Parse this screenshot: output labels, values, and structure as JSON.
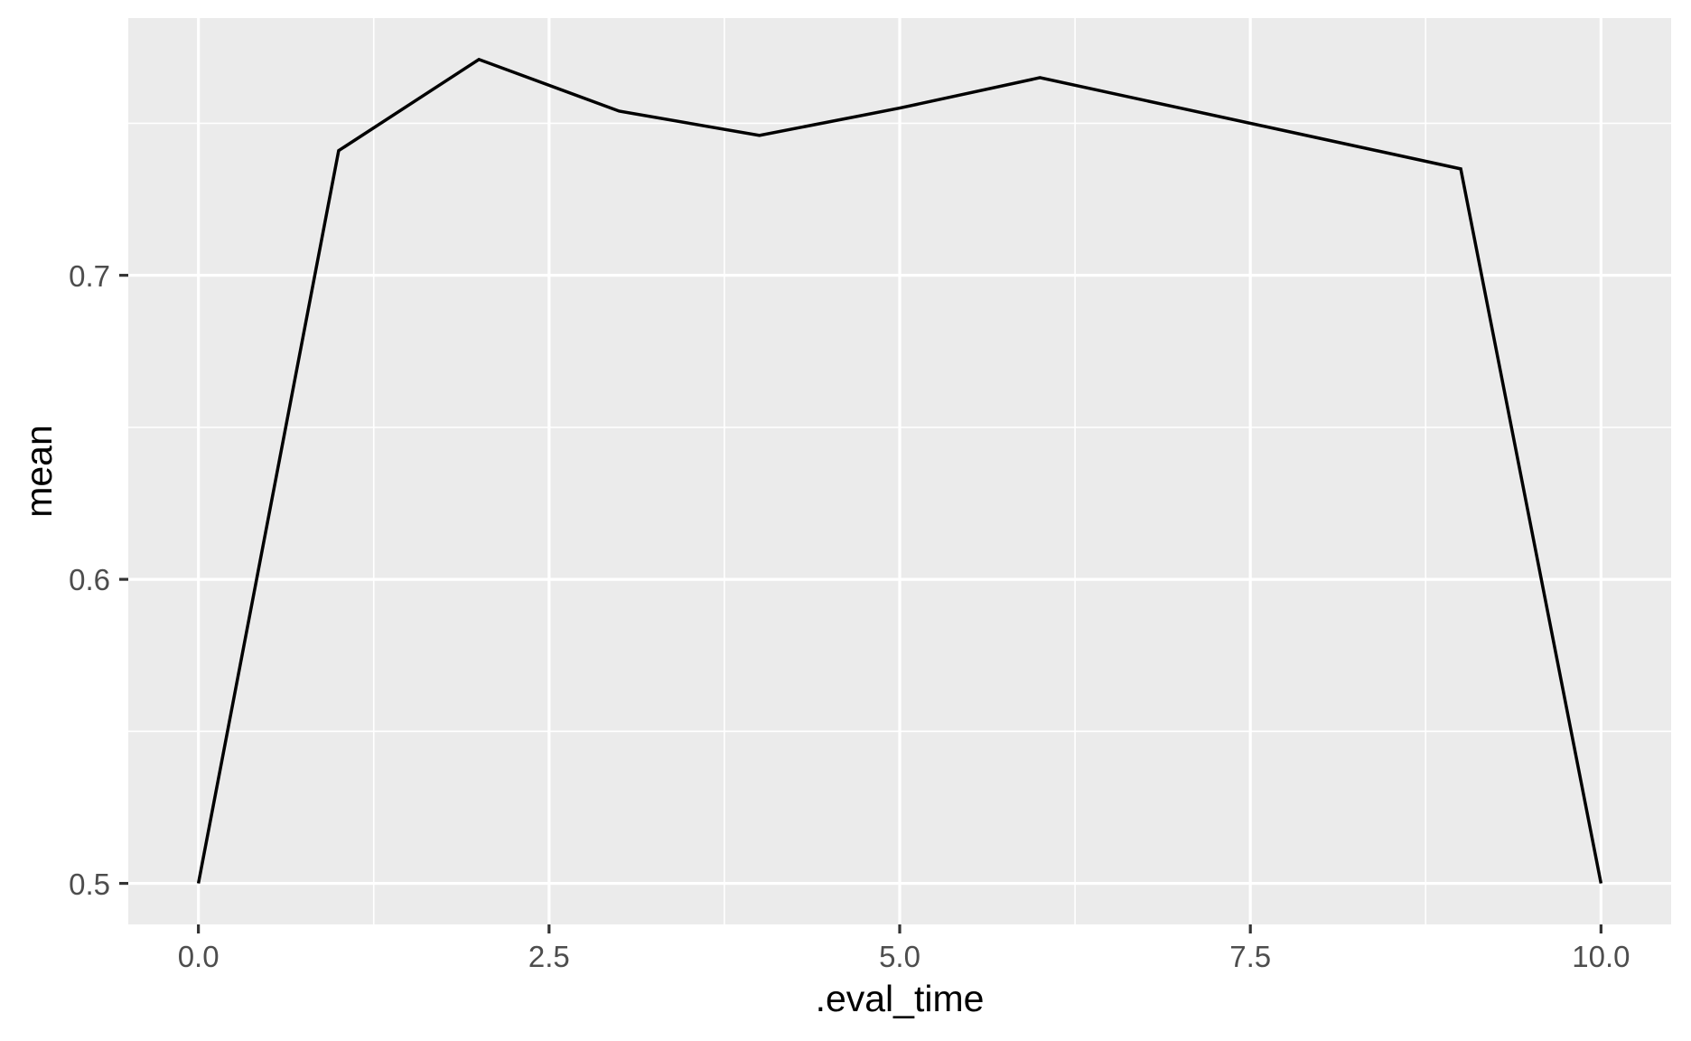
{
  "chart_data": {
    "type": "line",
    "title": "",
    "xlabel": ".eval_time",
    "ylabel": "mean",
    "x": [
      0,
      1,
      2,
      3,
      4,
      5,
      6,
      7,
      8,
      9,
      10
    ],
    "y": [
      0.5,
      0.741,
      0.771,
      0.754,
      0.746,
      0.755,
      0.765,
      0.755,
      0.745,
      0.735,
      0.5
    ],
    "xlim": [
      -0.5,
      10.5
    ],
    "ylim": [
      0.4865,
      0.7846
    ],
    "x_ticks": [
      {
        "value": 0,
        "label": "0.0"
      },
      {
        "value": 2.5,
        "label": "2.5"
      },
      {
        "value": 5,
        "label": "5.0"
      },
      {
        "value": 7.5,
        "label": "7.5"
      },
      {
        "value": 10,
        "label": "10.0"
      }
    ],
    "y_ticks": [
      {
        "value": 0.5,
        "label": "0.5"
      },
      {
        "value": 0.6,
        "label": "0.6"
      },
      {
        "value": 0.7,
        "label": "0.7"
      }
    ],
    "grid": "major+minor",
    "legend": "none",
    "style": {
      "page_bg": "#FFFFFF",
      "panel_bg": "#EBEBEB",
      "grid_color": "#FFFFFF",
      "line_color": "#000000",
      "tick_mark_color": "#333333",
      "tick_label_color": "#4D4D4D",
      "axis_title_color": "#000000"
    }
  }
}
